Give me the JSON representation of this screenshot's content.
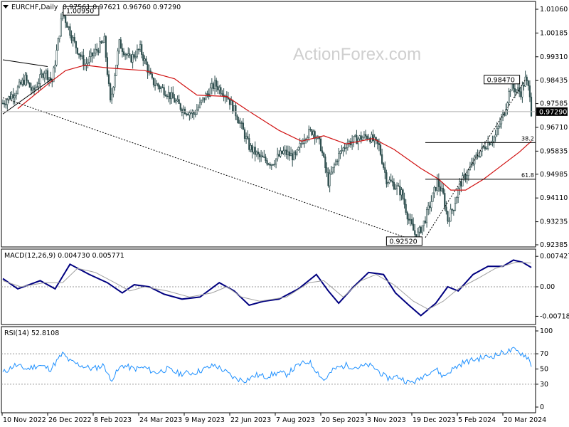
{
  "header": {
    "symbol": "EURCHF,Daily",
    "ohlc": "0.97561 0.97621 0.96760 0.97290",
    "watermark": "ActionForex.com"
  },
  "colors": {
    "candle": "#2f4f4f",
    "ma": "#d01010",
    "macd": "#000080",
    "signal": "#a0a0a0",
    "rsi": "#1e90ff",
    "grid_dotted": "#9a9a9a"
  },
  "chart_data": [
    {
      "type": "candlestick",
      "title": "EURCHF,Daily",
      "ylim": [
        0.92385,
        1.0106
      ],
      "y_ticks": [
        "1.01060",
        "1.00185",
        "0.99310",
        "0.98435",
        "0.97585",
        "0.96710",
        "0.95835",
        "0.94985",
        "0.94110",
        "0.93235",
        "0.92385"
      ],
      "last_price": "0.97290",
      "x_ticks": [
        "10 Nov 2022",
        "26 Dec 2022",
        "8 Feb 2023",
        "24 Mar 2023",
        "9 May 2023",
        "22 Jun 2023",
        "7 Aug 2023",
        "20 Sep 2023",
        "3 Nov 2023",
        "19 Dec 2023",
        "5 Feb 2024",
        "20 Mar 2024"
      ],
      "bars": 355,
      "close_path": [
        [
          0,
          0.976
        ],
        [
          8,
          0.98
        ],
        [
          15,
          0.985
        ],
        [
          20,
          0.98
        ],
        [
          28,
          0.988
        ],
        [
          33,
          0.984
        ],
        [
          40,
          1.0095
        ],
        [
          48,
          0.998
        ],
        [
          55,
          0.99
        ],
        [
          62,
          0.995
        ],
        [
          68,
          0.999
        ],
        [
          72,
          0.976
        ],
        [
          78,
          0.998
        ],
        [
          85,
          0.992
        ],
        [
          92,
          0.996
        ],
        [
          100,
          0.984
        ],
        [
          110,
          0.98
        ],
        [
          120,
          0.974
        ],
        [
          128,
          0.972
        ],
        [
          135,
          0.978
        ],
        [
          142,
          0.983
        ],
        [
          150,
          0.979
        ],
        [
          158,
          0.97
        ],
        [
          165,
          0.96
        ],
        [
          172,
          0.956
        ],
        [
          180,
          0.954
        ],
        [
          188,
          0.958
        ],
        [
          196,
          0.956
        ],
        [
          202,
          0.964
        ],
        [
          208,
          0.966
        ],
        [
          213,
          0.96
        ],
        [
          218,
          0.947
        ],
        [
          224,
          0.956
        ],
        [
          230,
          0.961
        ],
        [
          238,
          0.963
        ],
        [
          245,
          0.964
        ],
        [
          252,
          0.96
        ],
        [
          257,
          0.948
        ],
        [
          262,
          0.946
        ],
        [
          267,
          0.943
        ],
        [
          272,
          0.933
        ],
        [
          277,
          0.9265
        ],
        [
          282,
          0.932
        ],
        [
          287,
          0.94
        ],
        [
          291,
          0.947
        ],
        [
          295,
          0.942
        ],
        [
          298,
          0.933
        ],
        [
          302,
          0.938
        ],
        [
          306,
          0.946
        ],
        [
          312,
          0.951
        ],
        [
          318,
          0.957
        ],
        [
          324,
          0.961
        ],
        [
          330,
          0.964
        ],
        [
          336,
          0.973
        ],
        [
          340,
          0.982
        ],
        [
          344,
          0.981
        ],
        [
          347,
          0.98
        ],
        [
          350,
          0.9847
        ],
        [
          353,
          0.98
        ],
        [
          354,
          0.9729
        ]
      ],
      "moving_average": [
        [
          10,
          0.974
        ],
        [
          30,
          0.983
        ],
        [
          42,
          0.988
        ],
        [
          55,
          0.99
        ],
        [
          70,
          0.989
        ],
        [
          95,
          0.988
        ],
        [
          115,
          0.985
        ],
        [
          130,
          0.979
        ],
        [
          150,
          0.9785
        ],
        [
          165,
          0.973
        ],
        [
          185,
          0.966
        ],
        [
          200,
          0.962
        ],
        [
          215,
          0.964
        ],
        [
          230,
          0.961
        ],
        [
          248,
          0.963
        ],
        [
          262,
          0.959
        ],
        [
          280,
          0.952
        ],
        [
          292,
          0.948
        ],
        [
          300,
          0.944
        ],
        [
          310,
          0.944
        ],
        [
          322,
          0.948
        ],
        [
          334,
          0.953
        ],
        [
          346,
          0.958
        ],
        [
          354,
          0.962
        ]
      ],
      "annotations": [
        {
          "text": "1.00950",
          "at": [
            40,
            1.0095
          ]
        },
        {
          "text": "0.98470",
          "at": [
            350,
            0.9847
          ]
        },
        {
          "text": "0.92520",
          "at": [
            277,
            0.9252
          ]
        },
        {
          "text": "38.2",
          "level": 0.9615
        },
        {
          "text": "61.8",
          "level": 0.948
        }
      ]
    },
    {
      "type": "line",
      "title": "MACD(12,26,9) 0.004730 0.005771",
      "ylim": [
        -0.0085,
        0.0085
      ],
      "y_ticks": [
        "0.007427",
        "0.00",
        "-0.007186"
      ],
      "series": [
        {
          "name": "MACD",
          "points": [
            [
              0,
              0.002
            ],
            [
              10,
              -0.0005
            ],
            [
              25,
              0.0015
            ],
            [
              35,
              -0.0005
            ],
            [
              45,
              0.0055
            ],
            [
              58,
              0.003
            ],
            [
              70,
              0.001
            ],
            [
              80,
              -0.0015
            ],
            [
              88,
              0.0005
            ],
            [
              98,
              0.0
            ],
            [
              108,
              -0.0018
            ],
            [
              120,
              -0.003
            ],
            [
              132,
              -0.0025
            ],
            [
              145,
              0.001
            ],
            [
              155,
              -0.001
            ],
            [
              165,
              -0.0045
            ],
            [
              175,
              -0.0035
            ],
            [
              185,
              -0.003
            ],
            [
              198,
              -0.0005
            ],
            [
              210,
              0.003
            ],
            [
              218,
              -0.001
            ],
            [
              225,
              -0.004
            ],
            [
              235,
              0.0
            ],
            [
              245,
              0.0035
            ],
            [
              255,
              0.003
            ],
            [
              263,
              -0.0015
            ],
            [
              272,
              -0.0045
            ],
            [
              280,
              -0.007
            ],
            [
              290,
              -0.004
            ],
            [
              298,
              0.0
            ],
            [
              305,
              -0.001
            ],
            [
              315,
              0.003
            ],
            [
              325,
              0.005
            ],
            [
              335,
              0.005
            ],
            [
              342,
              0.0065
            ],
            [
              348,
              0.006
            ],
            [
              354,
              0.0047
            ]
          ]
        },
        {
          "name": "Signal",
          "points": [
            [
              0,
              0.0015
            ],
            [
              12,
              0.0
            ],
            [
              28,
              0.001
            ],
            [
              40,
              0.001
            ],
            [
              50,
              0.0045
            ],
            [
              62,
              0.0035
            ],
            [
              75,
              0.001
            ],
            [
              85,
              -0.001
            ],
            [
              95,
              0.0
            ],
            [
              110,
              -0.001
            ],
            [
              125,
              -0.0025
            ],
            [
              140,
              -0.0015
            ],
            [
              150,
              0.0
            ],
            [
              160,
              -0.0025
            ],
            [
              172,
              -0.0035
            ],
            [
              190,
              -0.0025
            ],
            [
              205,
              0.001
            ],
            [
              215,
              0.0015
            ],
            [
              228,
              -0.0025
            ],
            [
              240,
              0.0015
            ],
            [
              250,
              0.003
            ],
            [
              262,
              0.0005
            ],
            [
              275,
              -0.0035
            ],
            [
              285,
              -0.0055
            ],
            [
              295,
              -0.0035
            ],
            [
              305,
              -0.0005
            ],
            [
              318,
              0.002
            ],
            [
              330,
              0.0045
            ],
            [
              344,
              0.006
            ],
            [
              354,
              0.0058
            ]
          ]
        }
      ]
    },
    {
      "type": "line",
      "title": "RSI(14) 52.8108",
      "ylim": [
        0,
        100
      ],
      "y_ticks": [
        "100",
        "70",
        "50",
        "30",
        "0"
      ],
      "series": [
        {
          "name": "RSI",
          "points": [
            [
              0,
              45
            ],
            [
              8,
              55
            ],
            [
              16,
              50
            ],
            [
              24,
              55
            ],
            [
              32,
              50
            ],
            [
              40,
              70
            ],
            [
              45,
              60
            ],
            [
              52,
              55
            ],
            [
              60,
              50
            ],
            [
              68,
              55
            ],
            [
              72,
              35
            ],
            [
              80,
              55
            ],
            [
              88,
              50
            ],
            [
              95,
              52
            ],
            [
              102,
              45
            ],
            [
              110,
              50
            ],
            [
              118,
              44
            ],
            [
              128,
              45
            ],
            [
              135,
              50
            ],
            [
              142,
              55
            ],
            [
              148,
              48
            ],
            [
              155,
              38
            ],
            [
              162,
              35
            ],
            [
              170,
              42
            ],
            [
              176,
              40
            ],
            [
              184,
              45
            ],
            [
              190,
              43
            ],
            [
              198,
              55
            ],
            [
              205,
              60
            ],
            [
              210,
              48
            ],
            [
              215,
              35
            ],
            [
              222,
              50
            ],
            [
              230,
              55
            ],
            [
              238,
              52
            ],
            [
              245,
              55
            ],
            [
              250,
              50
            ],
            [
              257,
              38
            ],
            [
              265,
              40
            ],
            [
              272,
              32
            ],
            [
              278,
              35
            ],
            [
              284,
              45
            ],
            [
              290,
              50
            ],
            [
              295,
              40
            ],
            [
              300,
              48
            ],
            [
              308,
              58
            ],
            [
              315,
              62
            ],
            [
              322,
              65
            ],
            [
              330,
              68
            ],
            [
              336,
              72
            ],
            [
              342,
              75
            ],
            [
              348,
              70
            ],
            [
              352,
              65
            ],
            [
              354,
              53
            ]
          ]
        }
      ]
    }
  ]
}
